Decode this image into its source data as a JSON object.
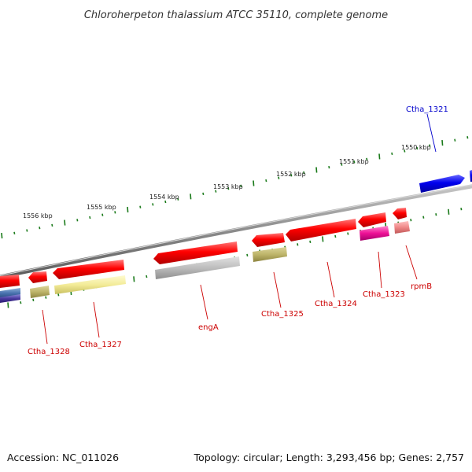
{
  "title": "Chloroherpeton thalassium ATCC 35110, complete genome",
  "footer": {
    "accession": "Accession: NC_011026",
    "summary": "Topology: circular; Length: 3,293,456 bp; Genes: 2,757"
  },
  "colors": {
    "backbone": "#8a8a8a",
    "tick": "#1a7a1a",
    "gene_label": "#cc0000",
    "reverse_gene_label": "#0000cc"
  },
  "scale_labels": [
    "1556 kbp",
    "1555 kbp",
    "1554 kbp",
    "1553 kbp",
    "1552 kbp",
    "1551 kbp",
    "1550 kbp"
  ],
  "gene_labels": {
    "Ctha_1321": "Ctha_1321",
    "Ctha_1328": "Ctha_1328",
    "Ctha_1327": "Ctha_1327",
    "engA": "engA",
    "Ctha_1325": "Ctha_1325",
    "Ctha_1324": "Ctha_1324",
    "Ctha_1323": "Ctha_1323",
    "rpmB": "rpmB"
  }
}
